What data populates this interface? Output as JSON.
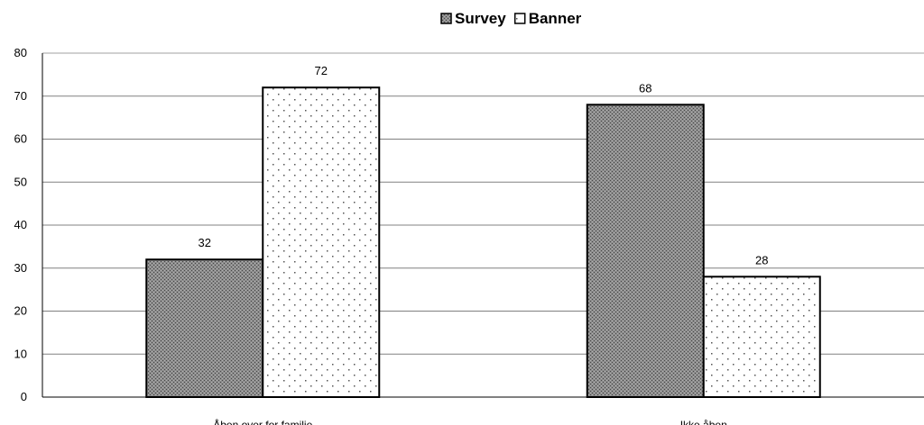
{
  "chart_data": {
    "type": "bar",
    "categories": [
      "Åben over for familie",
      "Ikke åben"
    ],
    "series": [
      {
        "name": "Survey",
        "values": [
          32,
          68
        ],
        "pattern": "crosshatch"
      },
      {
        "name": "Banner",
        "values": [
          72,
          28
        ],
        "pattern": "dots"
      }
    ],
    "ylim": [
      0,
      80
    ],
    "yticks": [
      0,
      10,
      20,
      30,
      40,
      50,
      60,
      70,
      80
    ],
    "grid": true,
    "legend_position": "top-center",
    "colors": {
      "bar_border": "#000000",
      "gridline": "#808080",
      "background": "#ffffff"
    }
  }
}
